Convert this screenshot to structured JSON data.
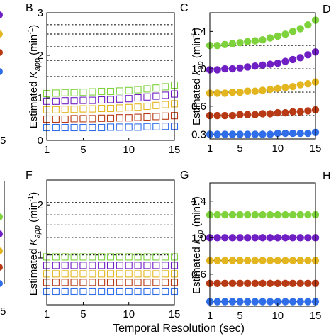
{
  "x_label": "Temporal Resolution (sec)",
  "colors": {
    "green": "#7ed23c",
    "purple": "#6f1fc4",
    "gold": "#e3b51e",
    "red": "#b83a14",
    "blue": "#2f6ee8"
  },
  "edge_labels": {
    "left_top_tick": "5",
    "left_bottom_tick": "5",
    "right_top_panel": "D",
    "right_bottom_panel": "H"
  },
  "chart_data": [
    {
      "panel": "B",
      "type": "scatter",
      "marker": "open-square",
      "ylabel": "Estimated K_app (min⁻¹)",
      "xlim": [
        1,
        15
      ],
      "ylim": [
        0,
        3
      ],
      "x_ticks": [
        "1",
        "5",
        "10",
        "15"
      ],
      "y_ticks": [
        "0",
        "1",
        "2",
        "3"
      ],
      "x": [
        1,
        2,
        3,
        4,
        5,
        6,
        7,
        8,
        9,
        10,
        11,
        12,
        13,
        14,
        15
      ],
      "reference_lines": [
        1.5,
        1.88,
        2.2,
        2.5,
        2.72
      ],
      "series": [
        {
          "color_key": "green",
          "values": [
            1.1,
            1.11,
            1.12,
            1.12,
            1.13,
            1.14,
            1.15,
            1.15,
            1.16,
            1.17,
            1.19,
            1.21,
            1.23,
            1.26,
            1.3
          ]
        },
        {
          "color_key": "purple",
          "values": [
            0.92,
            0.92,
            0.93,
            0.93,
            0.94,
            0.94,
            0.95,
            0.96,
            0.97,
            0.98,
            1.0,
            1.02,
            1.04,
            1.06,
            1.09
          ]
        },
        {
          "color_key": "gold",
          "values": [
            0.72,
            0.72,
            0.73,
            0.73,
            0.74,
            0.74,
            0.75,
            0.75,
            0.76,
            0.77,
            0.78,
            0.8,
            0.82,
            0.84,
            0.86
          ]
        },
        {
          "color_key": "red",
          "values": [
            0.5,
            0.5,
            0.5,
            0.51,
            0.51,
            0.51,
            0.52,
            0.52,
            0.53,
            0.53,
            0.54,
            0.55,
            0.56,
            0.57,
            0.58
          ]
        },
        {
          "color_key": "blue",
          "values": [
            0.3,
            0.3,
            0.3,
            0.3,
            0.3,
            0.3,
            0.3,
            0.31,
            0.31,
            0.31,
            0.31,
            0.32,
            0.32,
            0.33,
            0.33
          ]
        }
      ]
    },
    {
      "panel": "C",
      "type": "scatter",
      "marker": "filled-circle",
      "ylabel": "Estimated k_ep (min⁻¹)",
      "xlim": [
        1,
        15
      ],
      "ylim": [
        0.25,
        1.6
      ],
      "x_ticks": [
        "1",
        "5",
        "10",
        "15"
      ],
      "y_ticks": [
        "0.6",
        "1.0",
        "1.4"
      ],
      "y_tick_values": [
        0.6,
        1.0,
        1.4
      ],
      "extra_y_ticks": [
        {
          "label": "0.3",
          "value": 0.3
        }
      ],
      "x": [
        1,
        2,
        3,
        4,
        5,
        6,
        7,
        8,
        9,
        10,
        11,
        12,
        13,
        14,
        15
      ],
      "reference_lines": [
        0.3,
        0.5,
        0.75,
        1.0,
        1.25
      ],
      "series": [
        {
          "color_key": "green",
          "values": [
            1.25,
            1.25,
            1.26,
            1.27,
            1.28,
            1.29,
            1.3,
            1.31,
            1.33,
            1.35,
            1.37,
            1.4,
            1.43,
            1.47,
            1.52
          ]
        },
        {
          "color_key": "purple",
          "values": [
            0.99,
            0.99,
            1.0,
            1.0,
            1.01,
            1.02,
            1.03,
            1.04,
            1.05,
            1.06,
            1.08,
            1.1,
            1.12,
            1.15,
            1.18
          ]
        },
        {
          "color_key": "gold",
          "values": [
            0.74,
            0.74,
            0.74,
            0.75,
            0.75,
            0.76,
            0.76,
            0.77,
            0.78,
            0.79,
            0.8,
            0.81,
            0.83,
            0.84,
            0.86
          ]
        },
        {
          "color_key": "red",
          "values": [
            0.5,
            0.5,
            0.5,
            0.5,
            0.51,
            0.51,
            0.51,
            0.52,
            0.52,
            0.53,
            0.53,
            0.54,
            0.54,
            0.55,
            0.56
          ]
        },
        {
          "color_key": "blue",
          "values": [
            0.3,
            0.3,
            0.3,
            0.3,
            0.3,
            0.3,
            0.3,
            0.3,
            0.3,
            0.31,
            0.31,
            0.31,
            0.31,
            0.31,
            0.32
          ]
        }
      ]
    },
    {
      "panel": "F",
      "type": "scatter",
      "marker": "open-square",
      "ylabel": "Estimated K_app (min⁻¹)",
      "xlim": [
        1,
        15
      ],
      "ylim": [
        0,
        2.5
      ],
      "x_ticks": [
        "1",
        "5",
        "10",
        "15"
      ],
      "y_ticks": [
        "1",
        "2"
      ],
      "y_tick_values": [
        1,
        2
      ],
      "x": [
        1,
        2,
        3,
        4,
        5,
        6,
        7,
        8,
        9,
        10,
        11,
        12,
        13,
        14,
        15
      ],
      "reference_lines": [
        1.0,
        1.35,
        1.6,
        1.8,
        2.05
      ],
      "series": [
        {
          "color_key": "green",
          "values": [
            0.96,
            0.96,
            0.96,
            0.96,
            0.96,
            0.96,
            0.96,
            0.96,
            0.96,
            0.96,
            0.96,
            0.96,
            0.96,
            0.96,
            0.96
          ]
        },
        {
          "color_key": "purple",
          "values": [
            0.79,
            0.79,
            0.79,
            0.79,
            0.79,
            0.79,
            0.79,
            0.79,
            0.79,
            0.79,
            0.79,
            0.79,
            0.79,
            0.79,
            0.79
          ]
        },
        {
          "color_key": "gold",
          "values": [
            0.62,
            0.62,
            0.62,
            0.62,
            0.62,
            0.62,
            0.62,
            0.62,
            0.62,
            0.62,
            0.62,
            0.62,
            0.62,
            0.62,
            0.62
          ]
        },
        {
          "color_key": "red",
          "values": [
            0.45,
            0.45,
            0.45,
            0.45,
            0.45,
            0.45,
            0.45,
            0.45,
            0.45,
            0.45,
            0.45,
            0.45,
            0.45,
            0.45,
            0.45
          ]
        },
        {
          "color_key": "blue",
          "values": [
            0.27,
            0.27,
            0.27,
            0.27,
            0.27,
            0.27,
            0.27,
            0.27,
            0.27,
            0.27,
            0.27,
            0.27,
            0.27,
            0.27,
            0.27
          ]
        }
      ]
    },
    {
      "panel": "G",
      "type": "scatter",
      "marker": "filled-circle",
      "ylabel": "Estimated k_ep (min⁻¹)",
      "xlim": [
        1,
        15
      ],
      "ylim": [
        0.25,
        1.6
      ],
      "x_ticks": [
        "1",
        "5",
        "10",
        "15"
      ],
      "y_ticks": [
        "0.6",
        "1.0",
        "1.4"
      ],
      "y_tick_values": [
        0.6,
        1.0,
        1.4
      ],
      "x": [
        1,
        2,
        3,
        4,
        5,
        6,
        7,
        8,
        9,
        10,
        11,
        12,
        13,
        14,
        15
      ],
      "reference_lines": [
        0.3,
        0.5,
        0.75,
        1.0,
        1.25
      ],
      "series": [
        {
          "color_key": "green",
          "values": [
            1.25,
            1.25,
            1.25,
            1.25,
            1.25,
            1.25,
            1.25,
            1.25,
            1.25,
            1.25,
            1.25,
            1.25,
            1.25,
            1.25,
            1.25
          ]
        },
        {
          "color_key": "purple",
          "values": [
            1.0,
            1.0,
            1.0,
            1.0,
            1.0,
            1.0,
            1.0,
            1.0,
            1.0,
            1.0,
            1.0,
            1.0,
            1.0,
            1.0,
            1.0
          ]
        },
        {
          "color_key": "gold",
          "values": [
            0.75,
            0.75,
            0.75,
            0.75,
            0.75,
            0.75,
            0.75,
            0.75,
            0.75,
            0.75,
            0.75,
            0.75,
            0.75,
            0.75,
            0.75
          ]
        },
        {
          "color_key": "red",
          "values": [
            0.5,
            0.5,
            0.5,
            0.5,
            0.5,
            0.5,
            0.5,
            0.5,
            0.5,
            0.5,
            0.5,
            0.5,
            0.5,
            0.5,
            0.5
          ]
        },
        {
          "color_key": "blue",
          "values": [
            0.3,
            0.3,
            0.3,
            0.3,
            0.3,
            0.3,
            0.3,
            0.3,
            0.3,
            0.3,
            0.3,
            0.3,
            0.3,
            0.3,
            0.3
          ]
        }
      ]
    }
  ]
}
